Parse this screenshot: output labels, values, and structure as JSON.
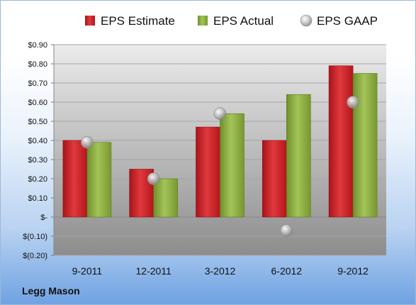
{
  "company": "Legg Mason",
  "chart_data": {
    "type": "bar",
    "categories": [
      "9-2011",
      "12-2011",
      "3-2012",
      "6-2012",
      "9-2012"
    ],
    "series": [
      {
        "name": "EPS Estimate",
        "kind": "bar",
        "color": "#cc1f24",
        "values": [
          0.4,
          0.25,
          0.47,
          0.4,
          0.79
        ]
      },
      {
        "name": "EPS Actual",
        "kind": "bar",
        "color": "#8bad3f",
        "values": [
          0.39,
          0.2,
          0.54,
          0.64,
          0.75
        ]
      },
      {
        "name": "EPS GAAP",
        "kind": "marker",
        "color": "#a9a9a9",
        "values": [
          0.39,
          0.2,
          0.54,
          -0.07,
          0.6
        ]
      }
    ],
    "yticks": [
      {
        "value": 0.9,
        "label": "$0.90"
      },
      {
        "value": 0.8,
        "label": "$0.80"
      },
      {
        "value": 0.7,
        "label": "$0.70"
      },
      {
        "value": 0.6,
        "label": "$0.60"
      },
      {
        "value": 0.5,
        "label": "$0.50"
      },
      {
        "value": 0.4,
        "label": "$0.40"
      },
      {
        "value": 0.3,
        "label": "$0.30"
      },
      {
        "value": 0.2,
        "label": "$0.20"
      },
      {
        "value": 0.1,
        "label": "$0.10"
      },
      {
        "value": 0,
        "label": "$-"
      },
      {
        "value": -0.1,
        "label": "$(0.10)"
      },
      {
        "value": -0.2,
        "label": "$(0.20)"
      }
    ],
    "ylim": [
      -0.2,
      0.9
    ],
    "grid": true,
    "legend_position": "top"
  }
}
